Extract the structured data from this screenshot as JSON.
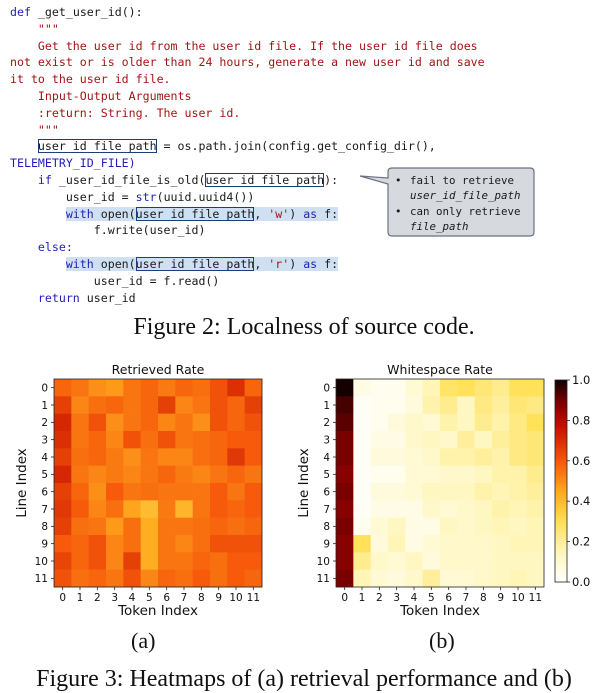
{
  "code_lines": [
    {
      "indent": 0,
      "parts": [
        {
          "t": "def",
          "c": "kw"
        },
        {
          "t": " _get_user_id():",
          "c": "fn"
        }
      ]
    },
    {
      "indent": 4,
      "parts": [
        {
          "t": "\"\"\"",
          "c": "dc"
        }
      ]
    },
    {
      "indent": 4,
      "parts": [
        {
          "t": "Get the user id from the user id file. If the user id file does",
          "c": "dc"
        }
      ]
    },
    {
      "indent": 0,
      "parts": [
        {
          "t": "not exist or is older than 24 hours, generate a new user id and save",
          "c": "dc"
        }
      ]
    },
    {
      "indent": 0,
      "parts": [
        {
          "t": "it to the user id file.",
          "c": "dc"
        }
      ]
    },
    {
      "indent": 4,
      "parts": [
        {
          "t": "Input-Output Arguments",
          "c": "dc"
        }
      ]
    },
    {
      "indent": 4,
      "parts": [
        {
          "t": ":return: String. The user id.",
          "c": "dc"
        }
      ]
    },
    {
      "indent": 4,
      "parts": [
        {
          "t": "\"\"\"",
          "c": "dc"
        }
      ]
    },
    {
      "indent": 4,
      "parts": [
        {
          "t": "user_id_file_path",
          "c": "tx",
          "box": true
        },
        {
          "t": " = os.path.join(config.get_config_dir(),",
          "c": "tx"
        }
      ]
    },
    {
      "indent": 0,
      "parts": [
        {
          "t": "TELEMETRY_ID_FILE)",
          "c": "kw"
        }
      ]
    },
    {
      "indent": 4,
      "parts": [
        {
          "t": "if",
          "c": "kw"
        },
        {
          "t": " _user_id_file_is_old(",
          "c": "tx"
        },
        {
          "t": "user_id_file_path",
          "c": "tx",
          "box": true
        },
        {
          "t": "):",
          "c": "tx"
        }
      ]
    },
    {
      "indent": 8,
      "parts": [
        {
          "t": "user_id = ",
          "c": "tx"
        },
        {
          "t": "str",
          "c": "kw"
        },
        {
          "t": "(uuid.uuid4())",
          "c": "tx"
        }
      ]
    },
    {
      "indent": 8,
      "parts": [
        {
          "t": "with",
          "c": "kw",
          "hl": true
        },
        {
          "t": " open(",
          "c": "tx",
          "hl": true
        },
        {
          "t": "user_id_file_path",
          "c": "tx",
          "box": true,
          "hl": true
        },
        {
          "t": ", ",
          "c": "tx",
          "hl": true
        },
        {
          "t": "'w'",
          "c": "dc",
          "hl": true
        },
        {
          "t": ") ",
          "c": "tx",
          "hl": true
        },
        {
          "t": "as",
          "c": "kw",
          "hl": true
        },
        {
          "t": " f:",
          "c": "tx",
          "hl": true
        }
      ]
    },
    {
      "indent": 12,
      "parts": [
        {
          "t": "f.write(user_id)",
          "c": "tx"
        }
      ]
    },
    {
      "indent": 4,
      "parts": [
        {
          "t": "else:",
          "c": "kw"
        }
      ]
    },
    {
      "indent": 8,
      "parts": [
        {
          "t": "with",
          "c": "kw",
          "hl": true
        },
        {
          "t": " open(",
          "c": "tx",
          "hl": true
        },
        {
          "t": "user_id_file_path",
          "c": "tx",
          "box": true,
          "hl": true
        },
        {
          "t": ", ",
          "c": "tx",
          "hl": true
        },
        {
          "t": "'r'",
          "c": "dc",
          "hl": true
        },
        {
          "t": ") ",
          "c": "tx",
          "hl": true
        },
        {
          "t": "as",
          "c": "kw",
          "hl": true
        },
        {
          "t": " f:",
          "c": "tx",
          "hl": true
        }
      ]
    },
    {
      "indent": 12,
      "parts": [
        {
          "t": "user_id = f.read()",
          "c": "tx"
        }
      ]
    },
    {
      "indent": 4,
      "parts": [
        {
          "t": "return",
          "c": "kw"
        },
        {
          "t": " user_id",
          "c": "tx"
        }
      ]
    }
  ],
  "callout": {
    "bullets": [
      {
        "lines": [
          {
            "t": "fail to retrieve",
            "i": false
          },
          {
            "t": "user_id_file_path",
            "i": true
          }
        ]
      },
      {
        "lines": [
          {
            "t": "can only retrieve",
            "i": false
          },
          {
            "t": "file_path",
            "i": true
          }
        ]
      }
    ],
    "bullet_char": "•"
  },
  "figure2_caption": "Figure 2: Localness of source code.",
  "figure3_caption": "Figure 3: Heatmaps of (a) retrieval performance and (b)",
  "chart_data": [
    {
      "type": "heatmap",
      "title": "Retrieved Rate",
      "xlabel": "Token Index",
      "ylabel": "Line Index",
      "x": [
        0,
        1,
        2,
        3,
        4,
        5,
        6,
        7,
        8,
        9,
        10,
        11
      ],
      "y": [
        0,
        1,
        2,
        3,
        4,
        5,
        6,
        7,
        8,
        9,
        10,
        11
      ],
      "z_range": [
        0,
        1
      ],
      "values": [
        [
          0.58,
          0.55,
          0.5,
          0.48,
          0.55,
          0.58,
          0.54,
          0.58,
          0.56,
          0.62,
          0.7,
          0.58
        ],
        [
          0.66,
          0.52,
          0.56,
          0.58,
          0.55,
          0.58,
          0.66,
          0.52,
          0.55,
          0.62,
          0.58,
          0.66
        ],
        [
          0.72,
          0.55,
          0.62,
          0.5,
          0.55,
          0.58,
          0.52,
          0.55,
          0.5,
          0.62,
          0.58,
          0.62
        ],
        [
          0.7,
          0.55,
          0.58,
          0.52,
          0.62,
          0.56,
          0.62,
          0.55,
          0.56,
          0.58,
          0.6,
          0.6
        ],
        [
          0.66,
          0.56,
          0.58,
          0.54,
          0.5,
          0.55,
          0.52,
          0.52,
          0.56,
          0.58,
          0.68,
          0.6
        ],
        [
          0.72,
          0.55,
          0.52,
          0.54,
          0.52,
          0.55,
          0.58,
          0.54,
          0.52,
          0.55,
          0.58,
          0.55
        ],
        [
          0.66,
          0.58,
          0.5,
          0.6,
          0.55,
          0.56,
          0.55,
          0.55,
          0.55,
          0.6,
          0.55,
          0.6
        ],
        [
          0.68,
          0.6,
          0.52,
          0.56,
          0.46,
          0.4,
          0.54,
          0.42,
          0.55,
          0.6,
          0.58,
          0.6
        ],
        [
          0.66,
          0.56,
          0.55,
          0.48,
          0.56,
          0.44,
          0.55,
          0.55,
          0.56,
          0.58,
          0.56,
          0.58
        ],
        [
          0.6,
          0.58,
          0.62,
          0.52,
          0.56,
          0.44,
          0.55,
          0.52,
          0.56,
          0.62,
          0.62,
          0.62
        ],
        [
          0.65,
          0.58,
          0.62,
          0.52,
          0.66,
          0.44,
          0.55,
          0.55,
          0.58,
          0.56,
          0.6,
          0.6
        ],
        [
          0.62,
          0.56,
          0.58,
          0.55,
          0.62,
          0.52,
          0.58,
          0.56,
          0.6,
          0.56,
          0.6,
          0.58
        ]
      ]
    },
    {
      "type": "heatmap",
      "title": "Whitespace Rate",
      "xlabel": "Token Index",
      "ylabel": "Line Index",
      "x": [
        0,
        1,
        2,
        3,
        4,
        5,
        6,
        7,
        8,
        9,
        10,
        11
      ],
      "y": [
        0,
        1,
        2,
        3,
        4,
        5,
        6,
        7,
        8,
        9,
        10,
        11
      ],
      "z_range": [
        0,
        1
      ],
      "colorbar_ticks": [
        "0.0",
        "0.2",
        "0.4",
        "0.6",
        "0.8",
        "1.0"
      ],
      "values": [
        [
          1.0,
          0.06,
          0.04,
          0.04,
          0.1,
          0.16,
          0.28,
          0.3,
          0.26,
          0.22,
          0.3,
          0.3
        ],
        [
          0.95,
          0.02,
          0.04,
          0.04,
          0.08,
          0.18,
          0.22,
          0.14,
          0.24,
          0.2,
          0.26,
          0.24
        ],
        [
          0.93,
          0.02,
          0.04,
          0.08,
          0.12,
          0.1,
          0.18,
          0.14,
          0.22,
          0.18,
          0.24,
          0.3
        ],
        [
          0.9,
          0.02,
          0.06,
          0.06,
          0.12,
          0.14,
          0.12,
          0.2,
          0.14,
          0.2,
          0.24,
          0.26
        ],
        [
          0.9,
          0.02,
          0.08,
          0.08,
          0.1,
          0.12,
          0.18,
          0.18,
          0.2,
          0.18,
          0.24,
          0.26
        ],
        [
          0.88,
          0.02,
          0.04,
          0.04,
          0.1,
          0.1,
          0.12,
          0.12,
          0.14,
          0.18,
          0.18,
          0.22
        ],
        [
          0.9,
          0.02,
          0.08,
          0.08,
          0.1,
          0.14,
          0.14,
          0.14,
          0.18,
          0.16,
          0.18,
          0.2
        ],
        [
          0.88,
          0.02,
          0.06,
          0.06,
          0.06,
          0.12,
          0.1,
          0.12,
          0.14,
          0.18,
          0.16,
          0.18
        ],
        [
          0.9,
          0.04,
          0.1,
          0.14,
          0.06,
          0.06,
          0.14,
          0.12,
          0.14,
          0.16,
          0.14,
          0.16
        ],
        [
          0.88,
          0.3,
          0.08,
          0.16,
          0.06,
          0.1,
          0.12,
          0.12,
          0.12,
          0.14,
          0.16,
          0.16
        ],
        [
          0.88,
          0.22,
          0.12,
          0.1,
          0.14,
          0.08,
          0.12,
          0.12,
          0.12,
          0.14,
          0.14,
          0.14
        ],
        [
          0.9,
          0.16,
          0.1,
          0.08,
          0.12,
          0.2,
          0.1,
          0.1,
          0.12,
          0.14,
          0.16,
          0.14
        ]
      ]
    }
  ],
  "sublabels": [
    "(a)",
    "(b)"
  ]
}
